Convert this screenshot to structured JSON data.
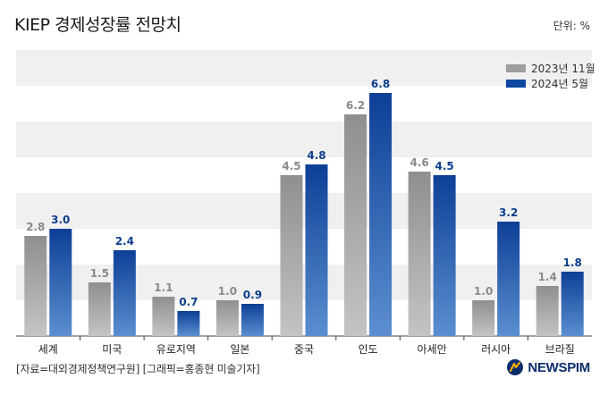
{
  "header": {
    "title": "KIEP 경제성장률 전망치",
    "unit": "단위: %"
  },
  "footer": {
    "source": "[자료=대외경제정책연구원] [그래픽=홍종현 미술기자]",
    "brand": "NEWSPIM"
  },
  "colors": {
    "series_a": "#9e9e9e",
    "series_b": "#0d47a1",
    "band": "#f0f0f0",
    "brand": "#0b2d6b",
    "brand_accent": "#f2a900"
  },
  "chart_data": {
    "type": "bar",
    "title": "KIEP 경제성장률 전망치",
    "unit": "단위: %",
    "categories": [
      "세계",
      "미국",
      "유로지역",
      "일본",
      "중국",
      "인도",
      "아세안",
      "러시아",
      "브라질"
    ],
    "series": [
      {
        "name": "2023년 11월",
        "values": [
          2.8,
          1.5,
          1.1,
          1.0,
          4.5,
          6.2,
          4.6,
          1.0,
          1.4
        ]
      },
      {
        "name": "2024년 5월",
        "values": [
          3.0,
          2.4,
          0.7,
          0.9,
          4.8,
          6.8,
          4.5,
          3.2,
          1.8
        ]
      }
    ],
    "ylim": [
      0,
      8
    ],
    "grid": "alternating horizontal bands",
    "legend": "top-right"
  }
}
